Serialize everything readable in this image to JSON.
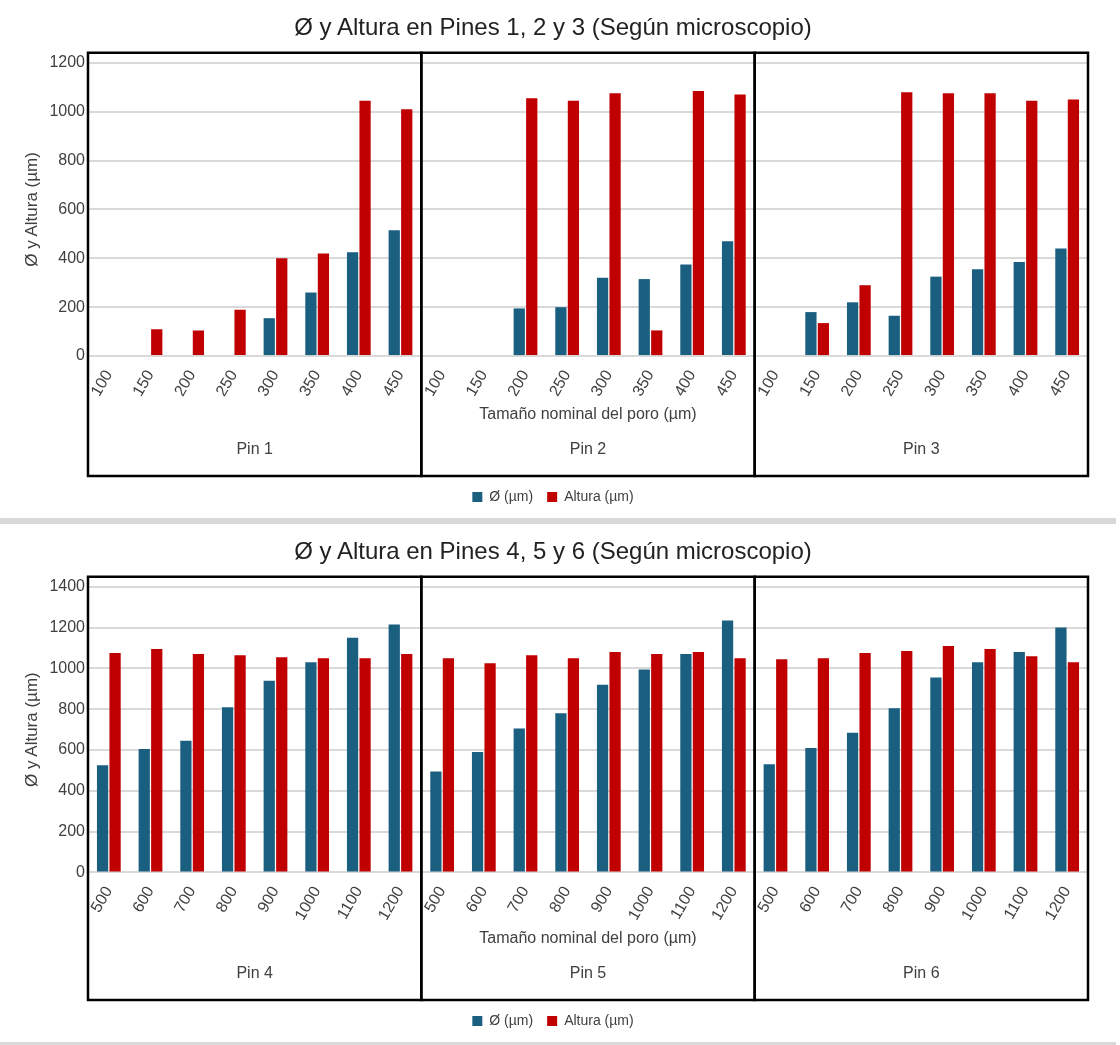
{
  "chart_data": [
    {
      "type": "bar",
      "title": "Ø y Altura en Pines 1, 2 y 3 (Según microscopio)",
      "xlabel": "Tamaño nominal del poro (µm)",
      "ylabel": "Ø y Altura (µm)",
      "categories": [
        "100",
        "150",
        "200",
        "250",
        "300",
        "350",
        "400",
        "450",
        "100",
        "150",
        "200",
        "250",
        "300",
        "350",
        "400",
        "450",
        "100",
        "150",
        "200",
        "250",
        "300",
        "350",
        "400",
        "450"
      ],
      "series": [
        {
          "name": "Ø (µm)",
          "color": "#1a5e80",
          "values": [
            null,
            null,
            null,
            null,
            155,
            260,
            425,
            515,
            null,
            null,
            195,
            200,
            320,
            315,
            375,
            470,
            null,
            180,
            220,
            165,
            325,
            355,
            385,
            440
          ]
        },
        {
          "name": "Altura (µm)",
          "color": "#c00000",
          "values": [
            null,
            110,
            105,
            190,
            400,
            420,
            1045,
            1010,
            null,
            null,
            1055,
            1045,
            1075,
            105,
            1085,
            1070,
            null,
            135,
            290,
            1080,
            1075,
            1075,
            1045,
            1050
          ]
        }
      ],
      "annotations": [
        "Pin 1",
        "Pin 2",
        "Pin 3"
      ],
      "ylim": [
        0,
        1200
      ],
      "yticks": [
        0,
        200,
        400,
        600,
        800,
        1000,
        1200
      ],
      "grid": "y",
      "legend": "bottom"
    },
    {
      "type": "bar",
      "title": "Ø y Altura en Pines 4, 5 y 6 (Según microscopio)",
      "xlabel": "Tamaño nominal del poro (µm)",
      "ylabel": "Ø y Altura (µm)",
      "categories": [
        "500",
        "600",
        "700",
        "800",
        "900",
        "1000",
        "1100",
        "1200",
        "500",
        "600",
        "700",
        "800",
        "900",
        "1000",
        "1100",
        "1200",
        "500",
        "600",
        "700",
        "800",
        "900",
        "1000",
        "1100",
        "1200"
      ],
      "series": [
        {
          "name": "Ø (µm)",
          "color": "#1a5e80",
          "values": [
            525,
            605,
            645,
            810,
            940,
            1030,
            1150,
            1215,
            495,
            590,
            705,
            780,
            920,
            995,
            1070,
            1235,
            530,
            610,
            685,
            805,
            955,
            1030,
            1080,
            1200
          ]
        },
        {
          "name": "Altura (µm)",
          "color": "#c00000",
          "values": [
            1075,
            1095,
            1070,
            1065,
            1055,
            1050,
            1050,
            1070,
            1050,
            1025,
            1065,
            1050,
            1080,
            1070,
            1080,
            1050,
            1045,
            1050,
            1075,
            1085,
            1110,
            1095,
            1060,
            1030
          ]
        }
      ],
      "annotations": [
        "Pin 4",
        "Pin 5",
        "Pin 6"
      ],
      "ylim": [
        0,
        1400
      ],
      "yticks": [
        0,
        200,
        400,
        600,
        800,
        1000,
        1200,
        1400
      ],
      "grid": "y",
      "legend": "bottom"
    }
  ]
}
